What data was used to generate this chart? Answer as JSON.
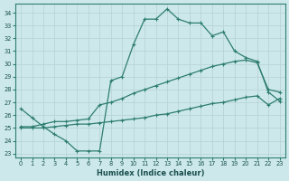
{
  "bg_color": "#cce8ea",
  "grid_color": "#b8d8dc",
  "line_color": "#2e7d70",
  "xlabel": "Humidex (Indice chaleur)",
  "xlim": [
    -0.5,
    23.5
  ],
  "ylim": [
    22.7,
    34.7
  ],
  "xticks": [
    0,
    1,
    2,
    3,
    4,
    5,
    6,
    7,
    8,
    9,
    10,
    11,
    12,
    13,
    14,
    15,
    16,
    17,
    18,
    19,
    20,
    21,
    22,
    23
  ],
  "yticks": [
    23,
    24,
    25,
    26,
    27,
    28,
    29,
    30,
    31,
    32,
    33,
    34
  ],
  "line1_x": [
    0,
    1,
    2,
    3,
    4,
    5,
    6,
    7,
    8,
    9,
    10,
    11,
    12,
    13,
    14,
    15,
    16,
    17,
    18,
    19,
    20,
    21,
    22,
    23
  ],
  "line1_y": [
    26.5,
    25.8,
    25.1,
    24.5,
    24.0,
    23.2,
    23.2,
    23.2,
    28.7,
    29.0,
    31.5,
    33.5,
    33.5,
    34.3,
    33.5,
    33.2,
    33.2,
    32.2,
    32.5,
    31.0,
    30.5,
    30.2,
    27.8,
    27.1
  ],
  "line2_x": [
    0,
    1,
    2,
    3,
    4,
    5,
    6,
    7,
    8,
    9,
    10,
    11,
    12,
    13,
    14,
    15,
    16,
    17,
    18,
    19,
    20,
    21,
    22,
    23
  ],
  "line2_y": [
    25.1,
    25.1,
    25.3,
    25.5,
    25.5,
    25.6,
    25.7,
    26.8,
    27.0,
    27.3,
    27.7,
    28.0,
    28.3,
    28.6,
    28.9,
    29.2,
    29.5,
    29.8,
    30.0,
    30.2,
    30.3,
    30.1,
    28.0,
    27.8
  ],
  "line3_x": [
    0,
    1,
    2,
    3,
    4,
    5,
    6,
    7,
    8,
    9,
    10,
    11,
    12,
    13,
    14,
    15,
    16,
    17,
    18,
    19,
    20,
    21,
    22,
    23
  ],
  "line3_y": [
    25.0,
    25.0,
    25.0,
    25.1,
    25.2,
    25.3,
    25.3,
    25.4,
    25.5,
    25.6,
    25.7,
    25.8,
    26.0,
    26.1,
    26.3,
    26.5,
    26.7,
    26.9,
    27.0,
    27.2,
    27.4,
    27.5,
    26.8,
    27.3
  ]
}
